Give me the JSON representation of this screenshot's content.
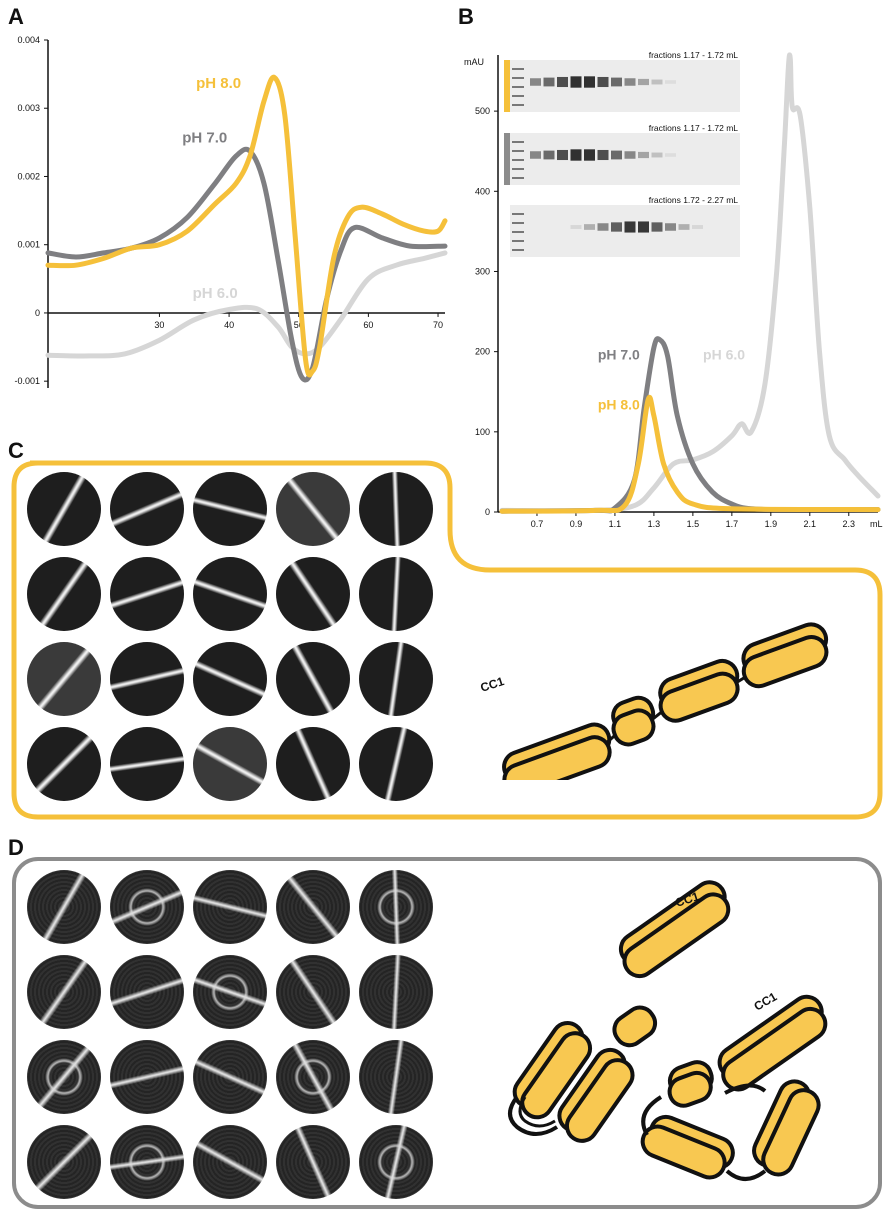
{
  "panels": {
    "a": "A",
    "b": "B",
    "c": "C",
    "d": "D"
  },
  "colors": {
    "ph8": "#f5c03a",
    "ph7": "#7f7f82",
    "ph6": "#d6d6d6",
    "axis": "#111111",
    "panel_c_border": "#f5c03a",
    "panel_d_border": "#8c8c8c",
    "protein_fill": "#f8c851",
    "protein_stroke": "#111111"
  },
  "chart_data": [
    {
      "type": "line",
      "panel": "A",
      "x_ticks": [
        30,
        40,
        50,
        60,
        70
      ],
      "y_ticks": [
        {
          "value": 0.004,
          "label": "0.004"
        },
        {
          "value": 0.003,
          "label": "0.003"
        },
        {
          "value": 0.002,
          "label": "0.002"
        },
        {
          "value": 0.001,
          "label": "0.001"
        },
        {
          "value": 0,
          "label": "0"
        },
        {
          "value": -0.001,
          "label": "-0.001"
        }
      ],
      "xlim": [
        14,
        71
      ],
      "ylim": [
        -0.0011,
        0.004
      ],
      "series": [
        {
          "name": "pH 6.0",
          "color": "#d6d6d6",
          "points": [
            [
              14,
              -0.00062
            ],
            [
              20,
              -0.00063
            ],
            [
              25,
              -0.0006
            ],
            [
              30,
              -0.0004
            ],
            [
              35,
              -0.0001
            ],
            [
              40,
              5e-05
            ],
            [
              44,
              6e-05
            ],
            [
              47,
              -0.0002
            ],
            [
              49,
              -0.0005
            ],
            [
              51,
              -0.0006
            ],
            [
              53,
              -0.0005
            ],
            [
              56,
              -0.0001
            ],
            [
              60,
              0.0005
            ],
            [
              64,
              0.0007
            ],
            [
              68,
              0.0008
            ],
            [
              71,
              0.00088
            ]
          ]
        },
        {
          "name": "pH 7.0",
          "color": "#7f7f82",
          "points": [
            [
              14,
              0.00088
            ],
            [
              18,
              0.00082
            ],
            [
              22,
              0.00088
            ],
            [
              26,
              0.00095
            ],
            [
              30,
              0.0011
            ],
            [
              34,
              0.0014
            ],
            [
              38,
              0.0019
            ],
            [
              41,
              0.0023
            ],
            [
              43,
              0.00237
            ],
            [
              45,
              0.0019
            ],
            [
              47,
              0.0008
            ],
            [
              49,
              -0.0004
            ],
            [
              50.5,
              -0.00095
            ],
            [
              52,
              -0.0008
            ],
            [
              54,
              0.0002
            ],
            [
              56,
              0.0009
            ],
            [
              58,
              0.00125
            ],
            [
              62,
              0.0011
            ],
            [
              66,
              0.00098
            ],
            [
              71,
              0.00098
            ]
          ]
        },
        {
          "name": "pH 8.0",
          "color": "#f5c03a",
          "points": [
            [
              14,
              0.0007
            ],
            [
              18,
              0.0007
            ],
            [
              22,
              0.0008
            ],
            [
              26,
              0.00095
            ],
            [
              30,
              0.001
            ],
            [
              34,
              0.0012
            ],
            [
              38,
              0.0016
            ],
            [
              41,
              0.0019
            ],
            [
              43,
              0.0023
            ],
            [
              45,
              0.0031
            ],
            [
              46.5,
              0.00345
            ],
            [
              48,
              0.0029
            ],
            [
              49.5,
              0.0011
            ],
            [
              51,
              -0.0007
            ],
            [
              52,
              -0.00085
            ],
            [
              53,
              -0.0005
            ],
            [
              55,
              0.0008
            ],
            [
              57,
              0.0014
            ],
            [
              59,
              0.00155
            ],
            [
              62,
              0.00145
            ],
            [
              65,
              0.0013
            ],
            [
              68,
              0.0012
            ],
            [
              70,
              0.0012
            ],
            [
              71,
              0.00135
            ]
          ]
        }
      ],
      "labels": [
        {
          "text": "pH 8.0",
          "series": "pH 8.0"
        },
        {
          "text": "pH 7.0",
          "series": "pH 7.0"
        },
        {
          "text": "pH 6.0",
          "series": "pH 6.0"
        }
      ]
    },
    {
      "type": "line",
      "panel": "B",
      "ylabel": "mAU",
      "xlabel": "mL",
      "x_ticks": [
        "0.7",
        "0.9",
        "1.1",
        "1.3",
        "1.5",
        "1.7",
        "1.9",
        "2.1",
        "2.3"
      ],
      "y_ticks": [
        0,
        100,
        200,
        300,
        400,
        500
      ],
      "xlim": [
        0.5,
        2.45
      ],
      "ylim": [
        0,
        570
      ],
      "series": [
        {
          "name": "pH 6.0",
          "color": "#d6d6d6",
          "points": [
            [
              0.52,
              2
            ],
            [
              1.0,
              2
            ],
            [
              1.2,
              8
            ],
            [
              1.3,
              30
            ],
            [
              1.4,
              60
            ],
            [
              1.5,
              65
            ],
            [
              1.6,
              75
            ],
            [
              1.7,
              95
            ],
            [
              1.75,
              110
            ],
            [
              1.8,
              100
            ],
            [
              1.87,
              160
            ],
            [
              1.93,
              300
            ],
            [
              1.97,
              460
            ],
            [
              1.99,
              555
            ],
            [
              2.0,
              565
            ],
            [
              2.01,
              505
            ],
            [
              2.05,
              495
            ],
            [
              2.1,
              380
            ],
            [
              2.15,
              200
            ],
            [
              2.2,
              95
            ],
            [
              2.28,
              65
            ],
            [
              2.35,
              45
            ],
            [
              2.45,
              20
            ]
          ]
        },
        {
          "name": "pH 7.0",
          "color": "#7f7f82",
          "points": [
            [
              0.52,
              1
            ],
            [
              1.0,
              2
            ],
            [
              1.1,
              5
            ],
            [
              1.2,
              40
            ],
            [
              1.25,
              130
            ],
            [
              1.3,
              205
            ],
            [
              1.33,
              215
            ],
            [
              1.37,
              195
            ],
            [
              1.42,
              120
            ],
            [
              1.5,
              60
            ],
            [
              1.6,
              25
            ],
            [
              1.7,
              10
            ],
            [
              1.8,
              4
            ],
            [
              2.0,
              3
            ],
            [
              2.45,
              3
            ]
          ]
        },
        {
          "name": "pH 8.0",
          "color": "#f5c03a",
          "points": [
            [
              0.52,
              1
            ],
            [
              1.0,
              2
            ],
            [
              1.15,
              8
            ],
            [
              1.22,
              60
            ],
            [
              1.27,
              140
            ],
            [
              1.3,
              120
            ],
            [
              1.35,
              60
            ],
            [
              1.42,
              25
            ],
            [
              1.5,
              10
            ],
            [
              1.7,
              4
            ],
            [
              2.45,
              3
            ]
          ]
        }
      ],
      "labels": [
        {
          "text": "pH 7.0",
          "series": "pH 7.0"
        },
        {
          "text": "pH 8.0",
          "series": "pH 8.0"
        },
        {
          "text": "pH 6.0",
          "series": "pH 6.0"
        }
      ],
      "gels": [
        {
          "caption": "fractions 1.17 - 1.72 mL",
          "marker_color": "#f5c03a"
        },
        {
          "caption": "fractions 1.17 - 1.72 mL",
          "marker_color": "#8c8c8c"
        },
        {
          "caption": "fractions 1.72 - 2.27 mL",
          "marker_color": "#ffffff"
        }
      ]
    }
  ],
  "schematic": {
    "c_label": "CC1",
    "d_label_1": "CC1",
    "d_label_2": "CC1"
  }
}
